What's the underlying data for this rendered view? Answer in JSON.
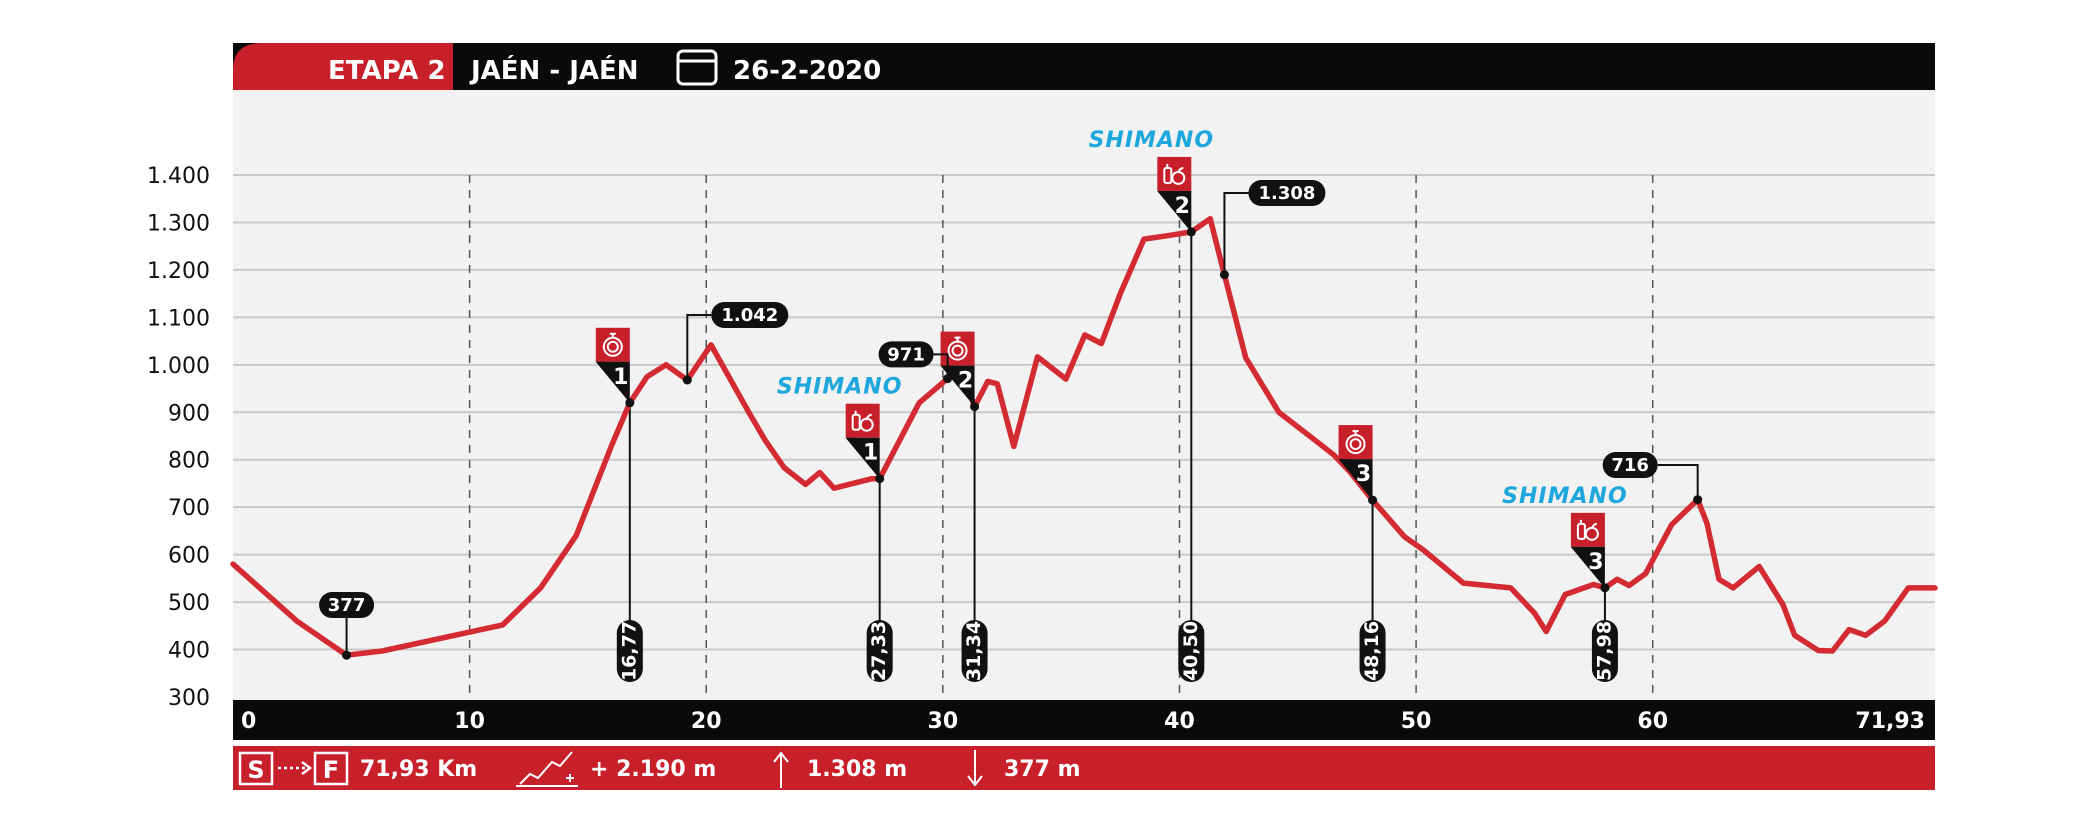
{
  "header": {
    "stage_label": "ETAPA 2",
    "route": "JAÉN - JAÉN",
    "date": "26-2-2020",
    "calendar_icon": "calendar-icon"
  },
  "footer": {
    "start_label": "S",
    "finish_label": "F",
    "distance": "71,93 Km",
    "elevation_gain": "+ 2.190 m",
    "max_altitude": "1.308 m",
    "min_altitude": "377 m",
    "climb_icon": "climb-icon",
    "up_icon": "arrow-up-icon",
    "down_icon": "arrow-down-icon"
  },
  "colors": {
    "brand_red": "#c8202b",
    "header_black": "#0a0a0a",
    "plot_bg": "#f2f2f2",
    "profile_line": "#d42a32",
    "sponsor_blue": "#1da7dc",
    "grid": "#c9c9c9"
  },
  "chart_data": {
    "type": "line",
    "title": "",
    "xlabel": "",
    "ylabel": "",
    "xlim": [
      0,
      71.93
    ],
    "ylim": [
      300,
      1400
    ],
    "x_tick_labels": [
      "0",
      "10",
      "20",
      "30",
      "40",
      "50",
      "60",
      "71,93"
    ],
    "x_ticks": [
      0,
      10,
      20,
      30,
      40,
      50,
      60,
      71.93
    ],
    "y_tick_labels": [
      "1.400",
      "1.300",
      "1.200",
      "1.100",
      "1.000",
      "900",
      "800",
      "700",
      "600",
      "500",
      "400",
      "300"
    ],
    "y_ticks": [
      1400,
      1300,
      1200,
      1100,
      1000,
      900,
      800,
      700,
      600,
      500,
      400,
      300
    ],
    "grid": true,
    "series": [
      {
        "x": [
          0,
          2.7,
          4.8,
          6.3,
          11.4,
          13,
          14.5,
          16,
          16.77,
          17.5,
          18.3,
          19.2,
          20.2,
          21.8,
          22.5,
          23.3,
          24.2,
          24.8,
          25.4,
          27.0,
          27.33,
          29.0,
          30.2,
          30.8,
          31.34,
          31.9,
          32.3,
          33.0,
          34.0,
          35.2,
          36.0,
          36.7,
          37.5,
          38.5,
          39.5,
          40.5,
          41.3,
          41.9,
          42.8,
          44.2,
          45.5,
          46.5,
          47.2,
          48.16,
          49.5,
          50.3,
          52.0,
          54.0,
          55.0,
          55.5,
          56.3,
          57.5,
          57.98,
          58.5,
          59.0,
          59.7,
          60.8,
          61.9,
          62.3,
          62.8,
          63.4,
          64.5,
          65.5,
          66.0,
          67.0,
          67.6,
          68.3,
          69.0,
          69.8,
          70.8,
          71.93
        ],
        "y": [
          580,
          460,
          388,
          397,
          452,
          530,
          640,
          830,
          920,
          975,
          1000,
          968,
          1042,
          900,
          840,
          783,
          748,
          773,
          740,
          760,
          760,
          920,
          971,
          990,
          912,
          965,
          960,
          828,
          1017,
          970,
          1063,
          1045,
          1150,
          1265,
          1272,
          1280,
          1308,
          1190,
          1015,
          900,
          850,
          811,
          775,
          715,
          638,
          610,
          540,
          530,
          477,
          438,
          516,
          537,
          530,
          548,
          535,
          560,
          663,
          716,
          665,
          548,
          530,
          575,
          495,
          430,
          398,
          397,
          442,
          430,
          460,
          530,
          530
        ]
      }
    ],
    "altitude_labels": [
      {
        "x": 4.8,
        "y": 388,
        "label": "377"
      },
      {
        "x": 19.2,
        "y": 1052,
        "label": "1.042"
      },
      {
        "x": 30.2,
        "y": 991,
        "label": "971"
      },
      {
        "x": 41.9,
        "y": 1308,
        "label": "1.308"
      },
      {
        "x": 61.9,
        "y": 733,
        "label": "716"
      }
    ],
    "markers": [
      {
        "x": 16.77,
        "km_label": "16,77",
        "number": "1",
        "type": "sprint",
        "icon": "stopwatch-icon",
        "sponsor": ""
      },
      {
        "x": 27.33,
        "km_label": "27,33",
        "number": "1",
        "type": "feed",
        "icon": "feed-bottle-apple-icon",
        "sponsor": "SHIMANO"
      },
      {
        "x": 31.34,
        "km_label": "31,34",
        "number": "2",
        "type": "sprint",
        "icon": "stopwatch-icon",
        "sponsor": ""
      },
      {
        "x": 40.5,
        "km_label": "40,50",
        "number": "2",
        "type": "feed",
        "icon": "feed-bottle-apple-icon",
        "sponsor": "SHIMANO"
      },
      {
        "x": 48.16,
        "km_label": "48,16",
        "number": "3",
        "type": "sprint",
        "icon": "stopwatch-icon",
        "sponsor": ""
      },
      {
        "x": 57.98,
        "km_label": "57,98",
        "number": "3",
        "type": "feed",
        "icon": "feed-bottle-apple-icon",
        "sponsor": "SHIMANO"
      }
    ]
  }
}
